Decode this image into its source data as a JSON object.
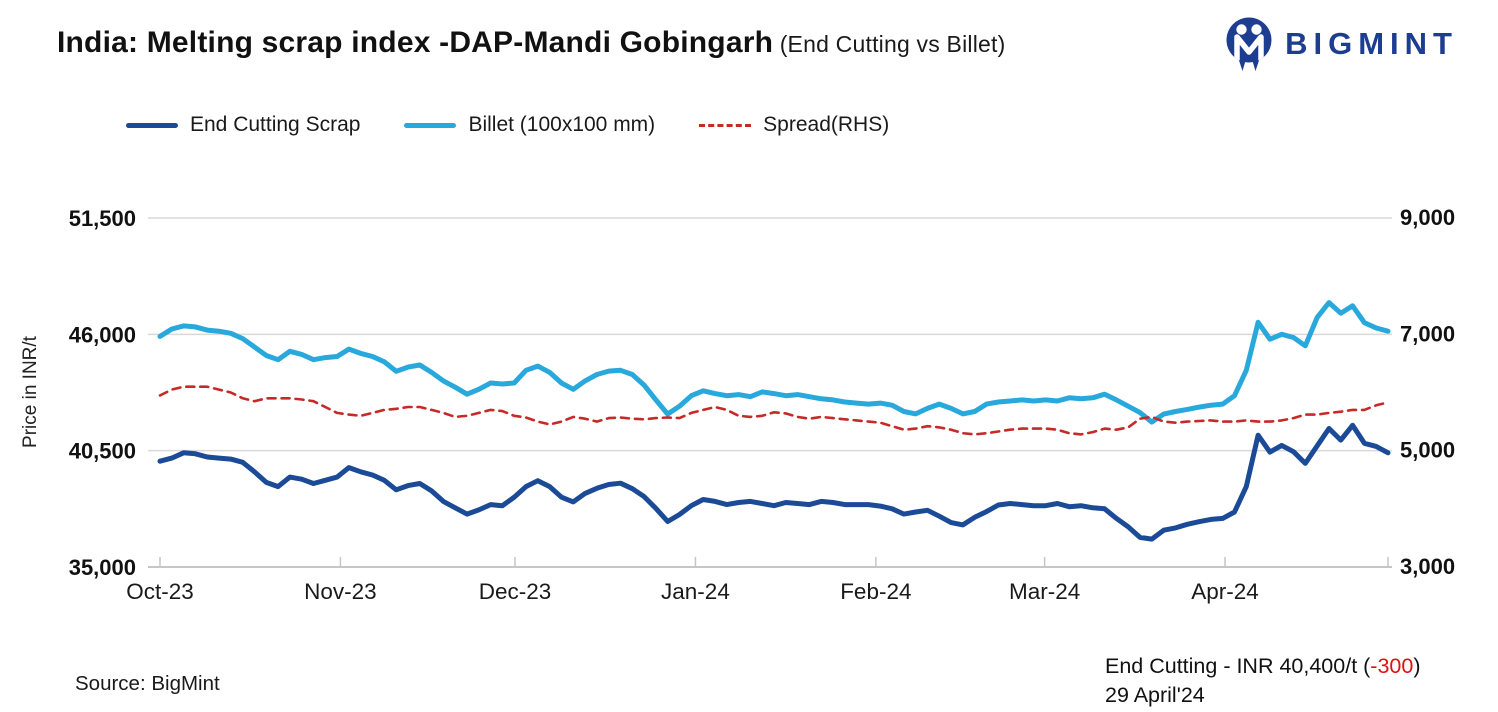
{
  "header": {
    "title": "India: Melting scrap index -DAP-Mandi Gobingarh",
    "subtitle": " (End Cutting vs Billet)",
    "brand": "BIGMINT",
    "brand_color": "#1d3d91"
  },
  "source": {
    "text": "Source: BigMint"
  },
  "annotation": {
    "line1_prefix": "End Cutting - INR 40,400/t (",
    "change": "-300",
    "line1_suffix": ")",
    "line2": "29 April'24",
    "change_color": "#e01111"
  },
  "chart_data": {
    "type": "line",
    "title": "India: Melting scrap index -DAP-Mandi Gobingarh (End Cutting vs Billet)",
    "grid": "horizontal-on",
    "legend_position": "top-left",
    "left_axis": {
      "label": "Price in INR/t",
      "min": 35000,
      "max": 51500,
      "tick_values": [
        35000,
        40500,
        46000,
        51500
      ],
      "tick_labels": [
        "35,000",
        "40,500",
        "46,000",
        "51,500"
      ]
    },
    "right_axis": {
      "min": 3000,
      "max": 9000,
      "tick_values": [
        3000,
        5000,
        7000,
        9000
      ],
      "tick_labels": [
        "3,000",
        "5,000",
        "7,000",
        "9,000"
      ]
    },
    "x_axis": {
      "total_days": 211,
      "tick_day_offsets": [
        0,
        31,
        61,
        92,
        123,
        152,
        183,
        211
      ],
      "tick_labels": [
        "Oct-23",
        "Nov-23",
        "Dec-23",
        "Jan-24",
        "Feb-24",
        "Mar-24",
        "Apr-24",
        ""
      ]
    },
    "series": [
      {
        "name": "Billet (100x100 mm)",
        "data_name": "billet-line",
        "axis": "left",
        "color": "#29a8dc",
        "width": 5,
        "dash": "",
        "values": [
          45900,
          46250,
          46400,
          46350,
          46200,
          46150,
          46050,
          45800,
          45400,
          45000,
          44800,
          45200,
          45050,
          44800,
          44900,
          44950,
          45300,
          45100,
          44950,
          44700,
          44250,
          44450,
          44550,
          44200,
          43800,
          43500,
          43170,
          43400,
          43700,
          43650,
          43700,
          44300,
          44500,
          44200,
          43700,
          43400,
          43800,
          44100,
          44260,
          44300,
          44100,
          43600,
          42900,
          42230,
          42600,
          43100,
          43330,
          43200,
          43100,
          43150,
          43050,
          43280,
          43200,
          43100,
          43150,
          43050,
          42950,
          42900,
          42800,
          42750,
          42700,
          42750,
          42650,
          42350,
          42240,
          42500,
          42700,
          42500,
          42240,
          42350,
          42700,
          42800,
          42850,
          42900,
          42850,
          42900,
          42850,
          43000,
          42950,
          43000,
          43170,
          42900,
          42600,
          42300,
          41850,
          42230,
          42350,
          42450,
          42560,
          42650,
          42700,
          43100,
          44300,
          46570,
          45770,
          46000,
          45850,
          45460,
          46800,
          47500,
          47000,
          47350,
          46550,
          46300,
          46150
        ]
      },
      {
        "name": "End Cutting Scrap",
        "data_name": "end-cutting-line",
        "axis": "left",
        "color": "#1b4a97",
        "width": 5,
        "dash": "",
        "values": [
          40000,
          40150,
          40400,
          40350,
          40200,
          40150,
          40100,
          39950,
          39500,
          39000,
          38800,
          39250,
          39150,
          38950,
          39100,
          39250,
          39700,
          39500,
          39350,
          39100,
          38650,
          38850,
          38950,
          38600,
          38100,
          37800,
          37500,
          37700,
          37950,
          37900,
          38300,
          38800,
          39080,
          38800,
          38300,
          38080,
          38480,
          38720,
          38900,
          38960,
          38700,
          38330,
          37770,
          37150,
          37480,
          37900,
          38190,
          38100,
          37950,
          38050,
          38100,
          38000,
          37900,
          38050,
          38000,
          37950,
          38100,
          38050,
          37950,
          37950,
          37950,
          37880,
          37750,
          37500,
          37600,
          37680,
          37400,
          37100,
          36990,
          37350,
          37620,
          37930,
          38000,
          37950,
          37900,
          37900,
          38000,
          37850,
          37900,
          37800,
          37750,
          37300,
          36900,
          36400,
          36320,
          36740,
          36850,
          37020,
          37140,
          37250,
          37300,
          37600,
          38800,
          41230,
          40430,
          40750,
          40450,
          39900,
          40730,
          41550,
          41000,
          41700,
          40850,
          40700,
          40400
        ]
      },
      {
        "name": "Spread(RHS)",
        "data_name": "spread-line",
        "axis": "right",
        "color": "#c62a28",
        "width": 2.6,
        "dash": "8 6",
        "values": [
          5950,
          6050,
          6100,
          6100,
          6100,
          6050,
          6000,
          5900,
          5850,
          5900,
          5900,
          5900,
          5880,
          5850,
          5750,
          5650,
          5620,
          5600,
          5650,
          5700,
          5720,
          5750,
          5750,
          5700,
          5650,
          5580,
          5600,
          5650,
          5700,
          5680,
          5600,
          5570,
          5500,
          5450,
          5500,
          5580,
          5550,
          5500,
          5560,
          5570,
          5550,
          5540,
          5560,
          5570,
          5560,
          5650,
          5700,
          5750,
          5700,
          5600,
          5580,
          5600,
          5660,
          5640,
          5580,
          5550,
          5580,
          5560,
          5540,
          5520,
          5500,
          5480,
          5420,
          5360,
          5380,
          5420,
          5400,
          5360,
          5300,
          5280,
          5300,
          5330,
          5360,
          5380,
          5380,
          5380,
          5360,
          5300,
          5280,
          5320,
          5380,
          5360,
          5400,
          5550,
          5580,
          5500,
          5480,
          5500,
          5510,
          5520,
          5500,
          5500,
          5520,
          5500,
          5500,
          5520,
          5560,
          5620,
          5620,
          5650,
          5670,
          5700,
          5700,
          5780,
          5830
        ]
      }
    ]
  }
}
